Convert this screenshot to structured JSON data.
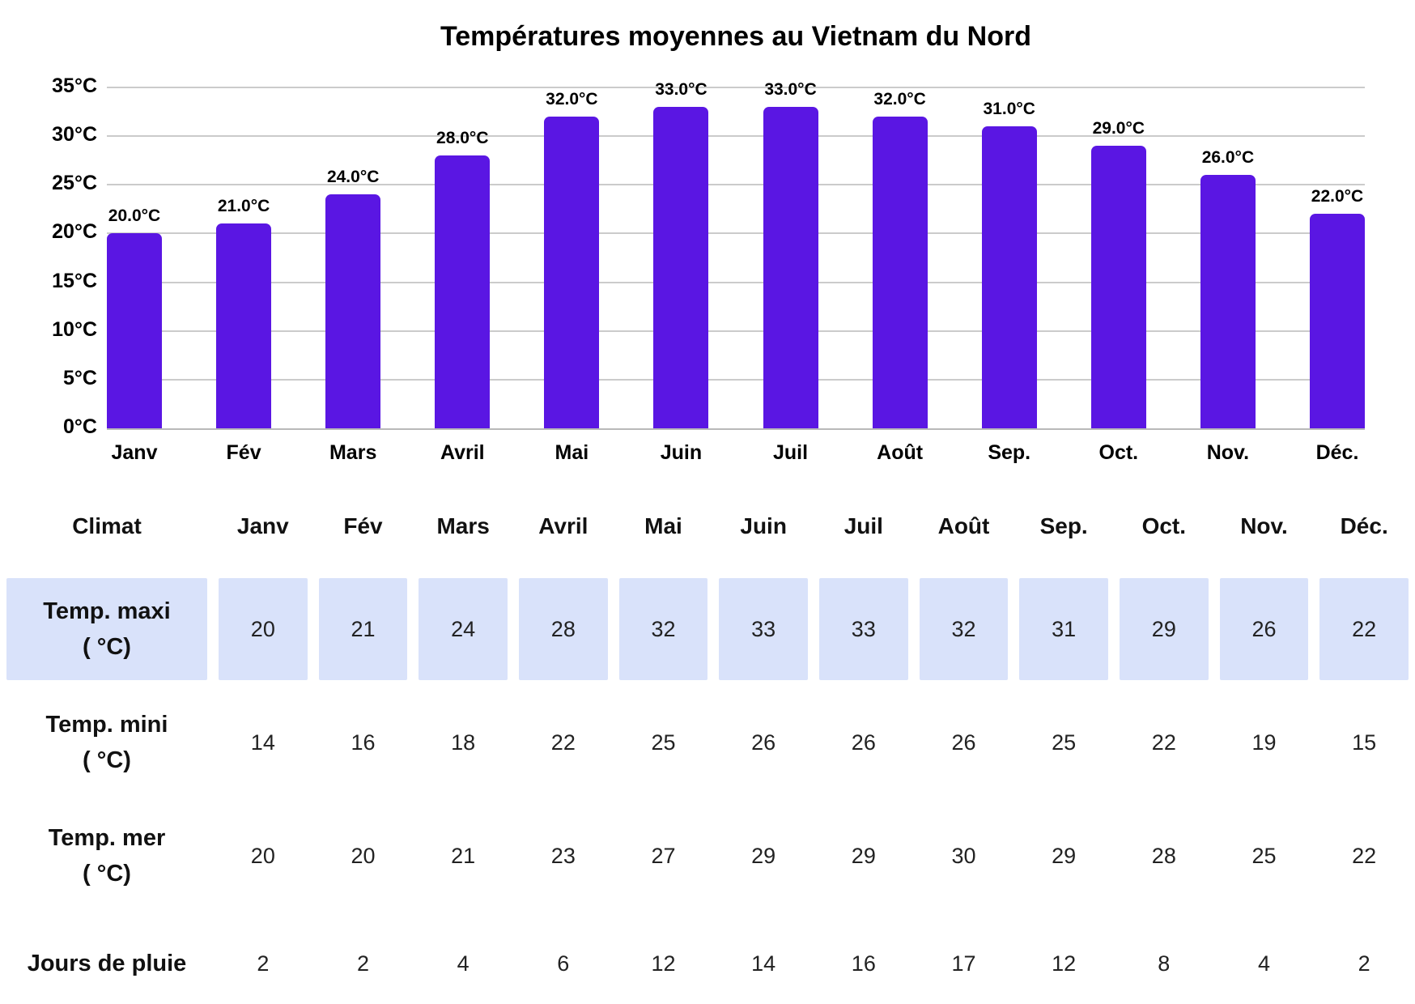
{
  "title": "Températures moyennes au Vietnam du Nord",
  "colors": {
    "bar": "#5a16e3",
    "grid": "#cbcbcb",
    "axis": "#b9b9b9",
    "highlight_cell": "#d9e2fa",
    "text": "#000000"
  },
  "chart_data": {
    "type": "bar",
    "title": "Températures moyennes au Vietnam du Nord",
    "categories": [
      "Janv",
      "Fév",
      "Mars",
      "Avril",
      "Mai",
      "Juin",
      "Juil",
      "Août",
      "Sep.",
      "Oct.",
      "Nov.",
      "Déc."
    ],
    "values": [
      20.0,
      21.0,
      24.0,
      28.0,
      32.0,
      33.0,
      33.0,
      32.0,
      31.0,
      29.0,
      26.0,
      22.0
    ],
    "bar_labels": [
      "20.0°C",
      "21.0°C",
      "24.0°C",
      "28.0°C",
      "32.0°C",
      "33.0°C",
      "33.0°C",
      "32.0°C",
      "31.0°C",
      "29.0°C",
      "26.0°C",
      "22.0°C"
    ],
    "y_ticks": [
      "0°C",
      "5°C",
      "10°C",
      "15°C",
      "20°C",
      "25°C",
      "30°C",
      "35°C"
    ],
    "y_tick_values": [
      0,
      5,
      10,
      15,
      20,
      25,
      30,
      35
    ],
    "ylim": [
      0,
      35
    ],
    "grid": true,
    "legend": "none",
    "xlabel": "",
    "ylabel": ""
  },
  "table": {
    "corner_label": "Climat",
    "months": [
      "Janv",
      "Fév",
      "Mars",
      "Avril",
      "Mai",
      "Juin",
      "Juil",
      "Août",
      "Sep.",
      "Oct.",
      "Nov.",
      "Déc."
    ],
    "rows": [
      {
        "label_line1": "Temp. maxi",
        "label_line2": "( °C)",
        "highlighted": true,
        "values": [
          20,
          21,
          24,
          28,
          32,
          33,
          33,
          32,
          31,
          29,
          26,
          22
        ]
      },
      {
        "label_line1": "Temp. mini",
        "label_line2": "( °C)",
        "highlighted": false,
        "values": [
          14,
          16,
          18,
          22,
          25,
          26,
          26,
          26,
          25,
          22,
          19,
          15
        ]
      },
      {
        "label_line1": "Temp. mer",
        "label_line2": "( °C)",
        "highlighted": false,
        "values": [
          20,
          20,
          21,
          23,
          27,
          29,
          29,
          30,
          29,
          28,
          25,
          22
        ]
      },
      {
        "label_line1": "Jours de pluie",
        "label_line2": "",
        "highlighted": false,
        "values": [
          2,
          2,
          4,
          6,
          12,
          14,
          16,
          17,
          12,
          8,
          4,
          2
        ]
      }
    ]
  }
}
